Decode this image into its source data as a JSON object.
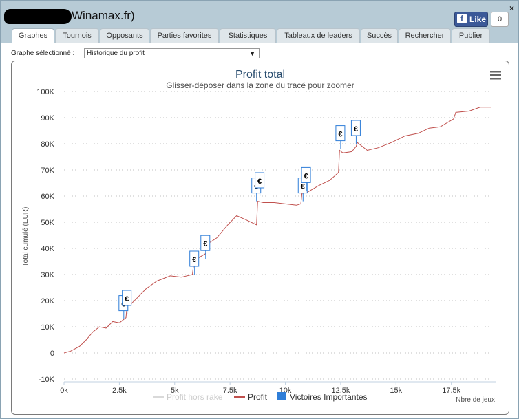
{
  "window": {
    "title_suffix": "Winamax.fr)",
    "close_label": "×",
    "fb_like_label": "Like",
    "fb_f": "f",
    "fb_count": "0"
  },
  "tabs": [
    {
      "label": "Graphes",
      "active": true
    },
    {
      "label": "Tournois"
    },
    {
      "label": "Opposants"
    },
    {
      "label": "Parties favorites"
    },
    {
      "label": "Statistiques"
    },
    {
      "label": "Tableaux de leaders"
    },
    {
      "label": "Succès"
    },
    {
      "label": "Rechercher"
    },
    {
      "label": "Publier"
    }
  ],
  "selector": {
    "label": "Graphe sélectionné :",
    "value": "Historique du profit",
    "arrow": "▼"
  },
  "chart_data": {
    "type": "line",
    "title": "Profit total",
    "subtitle": "Glisser-déposer dans la zone du tracé pour zoomer",
    "ylabel": "Total cumulé (EUR)",
    "xlabel": "Nbre de jeux",
    "xlim": [
      0,
      19500
    ],
    "ylim": [
      -10000,
      100000
    ],
    "x_ticks": [
      "0k",
      "2.5k",
      "5k",
      "7.5k",
      "10k",
      "12.5k",
      "15k",
      "17.5k"
    ],
    "x_tick_values": [
      0,
      2500,
      5000,
      7500,
      10000,
      12500,
      15000,
      17500
    ],
    "y_ticks": [
      "-10K",
      "0",
      "10K",
      "20K",
      "30K",
      "40K",
      "50K",
      "60K",
      "70K",
      "80K",
      "90K",
      "100K"
    ],
    "y_tick_values": [
      -10000,
      0,
      10000,
      20000,
      30000,
      40000,
      50000,
      60000,
      70000,
      80000,
      90000,
      100000
    ],
    "grid": true,
    "legend_position": "bottom",
    "legend": [
      {
        "name": "Profit hors rake",
        "color": "#d9d9d9",
        "kind": "line",
        "muted": true
      },
      {
        "name": "Profit",
        "color": "#c0504d",
        "kind": "line"
      },
      {
        "name": "Victoires Importantes",
        "color": "#2f7ed8",
        "kind": "box"
      }
    ],
    "series": [
      {
        "name": "Profit",
        "color": "#c0504d",
        "x": [
          0,
          300,
          700,
          1000,
          1300,
          1600,
          1900,
          2200,
          2500,
          2800,
          2850,
          3000,
          3300,
          3700,
          4200,
          4800,
          5300,
          5800,
          5850,
          6100,
          6400,
          6450,
          6900,
          7400,
          7800,
          8200,
          8700,
          8750,
          9000,
          9500,
          10000,
          10500,
          10700,
          10750,
          11000,
          11500,
          12000,
          12400,
          12450,
          12600,
          13000,
          13200,
          13250,
          13700,
          14200,
          14800,
          15400,
          16000,
          16500,
          17000,
          17600,
          17700,
          18300,
          18800,
          19300
        ],
        "y": [
          0,
          700,
          2500,
          5000,
          8000,
          10000,
          9500,
          12000,
          11500,
          13500,
          18000,
          18500,
          21000,
          24500,
          27500,
          29500,
          29000,
          30000,
          33500,
          36500,
          38000,
          41500,
          44000,
          49000,
          52500,
          51000,
          49000,
          58000,
          57500,
          57500,
          57000,
          56500,
          57000,
          61000,
          61500,
          64000,
          66000,
          69000,
          77500,
          76500,
          77000,
          79000,
          80500,
          77500,
          78500,
          80500,
          83000,
          84000,
          86000,
          86500,
          89500,
          92000,
          92500,
          94000,
          94000
        ]
      }
    ],
    "markers": [
      {
        "label": "€",
        "x": 2700,
        "y": 13000
      },
      {
        "label": "€",
        "x": 2850,
        "y": 15000
      },
      {
        "label": "€",
        "x": 5900,
        "y": 30000
      },
      {
        "label": "€",
        "x": 6400,
        "y": 36000
      },
      {
        "label": "€",
        "x": 8700,
        "y": 58000
      },
      {
        "label": "€",
        "x": 8850,
        "y": 60000
      },
      {
        "label": "€",
        "x": 10800,
        "y": 58000
      },
      {
        "label": "€",
        "x": 10950,
        "y": 62000
      },
      {
        "label": "€",
        "x": 12500,
        "y": 78000
      },
      {
        "label": "€",
        "x": 13200,
        "y": 80000
      }
    ]
  },
  "menu_icon": "hamburger-menu-icon"
}
